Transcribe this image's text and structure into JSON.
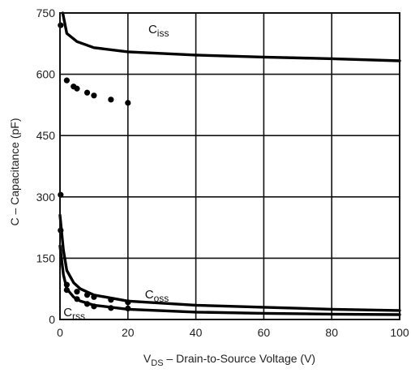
{
  "chart_data": {
    "type": "line",
    "title": "",
    "xlabel": {
      "main": "V",
      "sub": "DS",
      "rest": " – Drain-to-Source Voltage (V)"
    },
    "ylabel": "C – Capacitance (pF)",
    "xlim": [
      0,
      100
    ],
    "ylim": [
      0,
      750
    ],
    "xticks": [
      0,
      20,
      40,
      60,
      80,
      100
    ],
    "yticks": [
      0,
      150,
      300,
      450,
      600,
      750
    ],
    "grid": true,
    "series": [
      {
        "name": {
          "main": "C",
          "sub": "iss"
        },
        "x": [
          0.8,
          2,
          5,
          10,
          20,
          40,
          60,
          80,
          100
        ],
        "y": [
          750,
          700,
          680,
          665,
          655,
          647,
          642,
          638,
          633
        ],
        "markers": {
          "x": [
            0.2,
            2,
            4,
            5,
            8,
            10,
            15,
            20
          ],
          "y": [
            720,
            585,
            570,
            565,
            555,
            548,
            538,
            530
          ]
        }
      },
      {
        "name": {
          "main": "C",
          "sub": "oss"
        },
        "x": [
          0,
          1,
          2,
          4,
          6,
          10,
          20,
          40,
          60,
          80,
          100
        ],
        "y": [
          255,
          170,
          120,
          90,
          75,
          60,
          45,
          35,
          30,
          25,
          22
        ],
        "markers": {
          "x": [
            0.2,
            2,
            5,
            8,
            10,
            15,
            20
          ],
          "y": [
            218,
            72,
            68,
            60,
            55,
            48,
            42
          ]
        }
      },
      {
        "name": {
          "main": "C",
          "sub": "rss"
        },
        "x": [
          0,
          1,
          2,
          4,
          6,
          10,
          20,
          40,
          60,
          80,
          100
        ],
        "y": [
          180,
          110,
          75,
          55,
          45,
          35,
          25,
          18,
          15,
          13,
          12
        ],
        "markers": {
          "x": [
            0.2,
            2,
            5,
            8,
            10,
            15,
            20
          ],
          "y": [
            305,
            85,
            50,
            38,
            32,
            28,
            27
          ]
        }
      }
    ]
  }
}
